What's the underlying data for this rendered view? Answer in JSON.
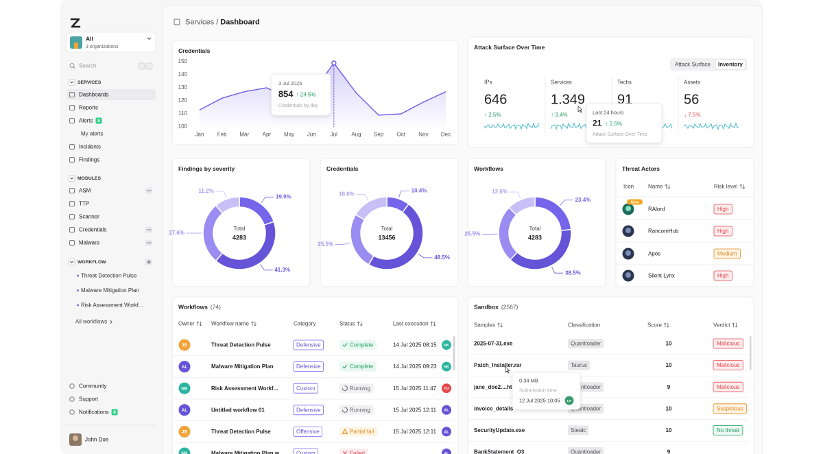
{
  "sidebar": {
    "org": {
      "name": "All",
      "subtitle": "3 organizations"
    },
    "search": "Search",
    "sections": [
      {
        "title": "SERVICES",
        "items": [
          {
            "label": "Dashboards",
            "active": true
          },
          {
            "label": "Reports"
          },
          {
            "label": "Alerts",
            "badge": 8
          },
          {
            "label": "My alerts",
            "sub": true
          },
          {
            "label": "Incidents"
          },
          {
            "label": "Findings"
          }
        ]
      },
      {
        "title": "MODULES",
        "items": [
          {
            "label": "ASM",
            "menu": true
          },
          {
            "label": "TTP"
          },
          {
            "label": "Scanner"
          },
          {
            "label": "Credentials",
            "menu": true
          },
          {
            "label": "Malware",
            "menu": true
          }
        ]
      },
      {
        "title": "WORKFLOW",
        "add": true,
        "items": [
          {
            "label": "Threat Detection Pulse"
          },
          {
            "label": "Malware Mitigation Plan"
          },
          {
            "label": "Risk Assessment Workf..."
          }
        ],
        "link": "All workflows"
      }
    ],
    "footer": [
      {
        "label": "Community"
      },
      {
        "label": "Support"
      },
      {
        "label": "Notifications",
        "badge": 8
      }
    ],
    "user": {
      "name": "John Doe"
    }
  },
  "breadcrumb": {
    "parent": "Services",
    "separator": "/",
    "current": "Dashboard"
  },
  "credentials_chart": {
    "type": "line",
    "title": "Credentials",
    "categories": [
      "Jan",
      "Feb",
      "Mar",
      "Apr",
      "May",
      "Jun",
      "Jul",
      "Aug",
      "Sep",
      "Oct",
      "Nov",
      "Dec"
    ],
    "values": [
      113,
      122,
      127,
      130,
      122,
      125,
      149,
      126,
      109,
      110,
      119,
      127
    ],
    "ylim": [
      100,
      150
    ],
    "yticks": [
      100,
      110,
      120,
      130,
      140,
      150
    ],
    "color": "#6e5ce6",
    "tooltip": {
      "date": "3 Jul 2025",
      "value": 854,
      "change": "↑ 24.5%",
      "caption": "Credentials by day"
    }
  },
  "attack_surface": {
    "title": "Attack Surface Over Time",
    "tabs": [
      "Attack Surface",
      "Inventory"
    ],
    "metrics": [
      {
        "label": "IPs",
        "value": 646,
        "change": "↑ 2.5%",
        "trend": "up"
      },
      {
        "label": "Services",
        "value": "1.349",
        "change": "↑ 3.4%",
        "trend": "up"
      },
      {
        "label": "Techs",
        "value": 91
      },
      {
        "label": "Assets",
        "value": 56,
        "change": "↓ 7.5%",
        "trend": "down"
      }
    ],
    "tooltip": {
      "title": "Last 24 hours",
      "value": 21,
      "change": "↑ 2.5%",
      "caption": "Attack Surface Over Time"
    }
  },
  "donuts": [
    {
      "type": "pie",
      "title": "Findings by severity",
      "total_label": "Total",
      "total": 4283,
      "values": [
        19.9,
        41.3,
        27.6,
        11.2
      ],
      "value_labels": [
        "19.9%",
        "41.3%",
        "27.6%",
        "11.2%"
      ],
      "colors": [
        "#7565ea",
        "#6554d8",
        "#9a8cf1",
        "#c7bff6"
      ]
    },
    {
      "type": "pie",
      "title": "Credentials",
      "total_label": "Total",
      "total": 13456,
      "values": [
        10.4,
        48.5,
        25.5,
        16.6
      ],
      "value_labels": [
        "10.4%",
        "48.5%",
        "25.5%",
        "16.6%"
      ],
      "colors": [
        "#7565ea",
        "#6554d8",
        "#9a8cf1",
        "#c7bff6"
      ]
    },
    {
      "type": "pie",
      "title": "Workflows",
      "total_label": "Total",
      "total": 4283,
      "values": [
        23.4,
        38.5,
        25.5,
        12.6
      ],
      "value_labels": [
        "23.4%",
        "38.5%",
        "25.5%",
        "12.6%"
      ],
      "colors": [
        "#7565ea",
        "#6554d8",
        "#9a8cf1",
        "#c7bff6"
      ]
    }
  ],
  "threat_actors": {
    "title": "Threat Actors",
    "columns": [
      {
        "label": "Icon"
      },
      {
        "label": "Name",
        "sortable": true
      },
      {
        "label": "Risk level",
        "sortable": true
      }
    ],
    "rows": [
      {
        "name": "RAlord",
        "badge": "New",
        "risk": "High",
        "tone": "error"
      },
      {
        "name": "RancomHub",
        "risk": "High",
        "tone": "error"
      },
      {
        "name": "Apos",
        "risk": "Medium",
        "tone": "warning"
      },
      {
        "name": "Silent Lynx",
        "risk": "High",
        "tone": "error"
      }
    ]
  },
  "workflows": {
    "title": "Workflows",
    "count": "(74)",
    "columns": [
      {
        "label": "Owner",
        "sortable": true
      },
      {
        "label": "Workflow name",
        "sortable": true
      },
      {
        "label": "Category"
      },
      {
        "label": "Status",
        "sortable": true
      },
      {
        "label": "Last execution",
        "sortable": true
      }
    ],
    "rows": [
      {
        "owner": "JB",
        "name": "Threat Detection Pulse",
        "category": "Defensive",
        "status": "Complete",
        "tone": "success",
        "last_execution": "14 Jul 2025 08:15",
        "executor": "NK"
      },
      {
        "owner": "AL",
        "name": "Malware Mitigation Plan",
        "category": "Defensive",
        "status": "Complete",
        "tone": "success",
        "last_execution": "14 Jul 2025 09:23",
        "executor": "NK"
      },
      {
        "owner": "NK",
        "name": "Risk Assessment Workf...",
        "category": "Custom",
        "status": "Running",
        "tone": "running",
        "last_execution": "15 Jul 2025 11:47",
        "executor": "HJ"
      },
      {
        "owner": "AL",
        "name": "Untitled workflow 01",
        "category": "Defensive",
        "status": "Running",
        "tone": "running",
        "last_execution": "15 Jul 2025 12:11",
        "executor": "AL"
      },
      {
        "owner": "JB",
        "name": "Threat Detection Pulse",
        "category": "Offensive",
        "status": "Partial fail",
        "tone": "warning",
        "last_execution": "15 Jul 2025 12:11",
        "executor": "AL"
      },
      {
        "owner": "NK",
        "name": "Malware Mitigation Plan w",
        "category": "Custom",
        "status": "Failed",
        "tone": "error",
        "executor": "AL"
      }
    ]
  },
  "sandbox": {
    "title": "Sandbox",
    "count": "(2567)",
    "columns": [
      {
        "label": "Samples",
        "sortable": true
      },
      {
        "label": "Classification"
      },
      {
        "label": "Score",
        "sortable": true
      },
      {
        "label": "Verdict",
        "sortable": true
      }
    ],
    "rows": [
      {
        "sample": "2025-07-31.exe",
        "classification": "Quantloader",
        "score": 10,
        "verdict": "Malicious",
        "tone": "error"
      },
      {
        "sample": "Patch_Installer.rar",
        "classification": "Taurus",
        "score": 10,
        "verdict": "Malicious",
        "tone": "error"
      },
      {
        "sample": "jane_doe2....ht",
        "classification": "Quantloader",
        "score": 9,
        "verdict": "Malicious",
        "tone": "error"
      },
      {
        "sample": "invoice_details",
        "classification": "Quantloader",
        "score": 10,
        "verdict": "Suspicious",
        "tone": "warning"
      },
      {
        "sample": "SecurityUpdate.exe",
        "classification": "Stealc",
        "score": 10,
        "verdict": "No threat",
        "tone": "success"
      },
      {
        "sample": "BankStatement_Q3",
        "classification": "Quantloader",
        "score": 9
      }
    ],
    "tooltip": {
      "size": "0.34 MB",
      "label": "Submission time",
      "time": "12 Jul 2025 10:05",
      "user": "LP"
    }
  },
  "avatars": {
    "JB": "#f2a33a",
    "AL": "#6554d8",
    "NK": "#2bb5a0",
    "HJ": "#e5484d",
    "LP": "#3a9b6f"
  }
}
